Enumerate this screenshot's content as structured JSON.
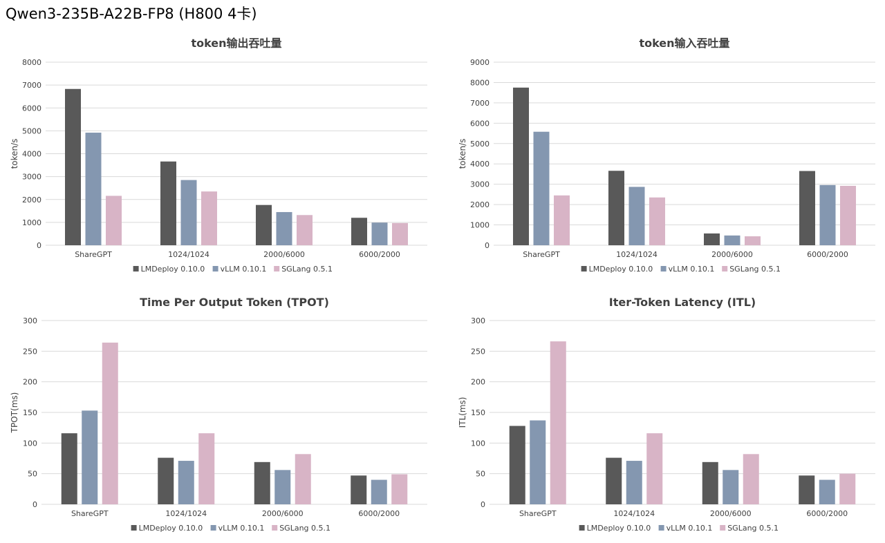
{
  "page_title": "Qwen3-235B-A22B-FP8 (H800 4卡)",
  "legend": [
    "LMDeploy 0.10.0",
    "vLLM 0.10.1",
    "SGLang 0.5.1"
  ],
  "colors": [
    "#595959",
    "#8497b0",
    "#d8b4c6"
  ],
  "chart_data": [
    {
      "type": "bar",
      "title": "token输出吞吐量",
      "ylabel": "token/s",
      "xlabel": "",
      "categories": [
        "ShareGPT",
        "1024/1024",
        "2000/6000",
        "6000/2000"
      ],
      "ylim": [
        0,
        8000
      ],
      "yticks": [
        0,
        1000,
        2000,
        3000,
        4000,
        5000,
        6000,
        7000,
        8000
      ],
      "legend_position": "bottom",
      "series": [
        {
          "name": "LMDeploy 0.10.0",
          "values": [
            6830,
            3660,
            1760,
            1200
          ]
        },
        {
          "name": "vLLM 0.10.1",
          "values": [
            4920,
            2850,
            1450,
            990
          ]
        },
        {
          "name": "SGLang 0.5.1",
          "values": [
            2160,
            2350,
            1320,
            970
          ]
        }
      ]
    },
    {
      "type": "bar",
      "title": "token输入吞吐量",
      "ylabel": "token/s",
      "xlabel": "",
      "categories": [
        "ShareGPT",
        "1024/1024",
        "2000/6000",
        "6000/2000"
      ],
      "ylim": [
        0,
        9000
      ],
      "yticks": [
        0,
        1000,
        2000,
        3000,
        4000,
        5000,
        6000,
        7000,
        8000,
        9000
      ],
      "legend_position": "bottom",
      "series": [
        {
          "name": "LMDeploy 0.10.0",
          "values": [
            7750,
            3660,
            580,
            3650
          ]
        },
        {
          "name": "vLLM 0.10.1",
          "values": [
            5580,
            2870,
            480,
            2960
          ]
        },
        {
          "name": "SGLang 0.5.1",
          "values": [
            2450,
            2350,
            440,
            2920
          ]
        }
      ]
    },
    {
      "type": "bar",
      "title": "Time Per Output Token (TPOT)",
      "ylabel": "TPOT(ms)",
      "xlabel": "",
      "categories": [
        "ShareGPT",
        "1024/1024",
        "2000/6000",
        "6000/2000"
      ],
      "ylim": [
        0,
        300
      ],
      "yticks": [
        0,
        50,
        100,
        150,
        200,
        250,
        300
      ],
      "legend_position": "bottom",
      "series": [
        {
          "name": "LMDeploy 0.10.0",
          "values": [
            116,
            76,
            69,
            47
          ]
        },
        {
          "name": "vLLM 0.10.1",
          "values": [
            153,
            71,
            56,
            40
          ]
        },
        {
          "name": "SGLang 0.5.1",
          "values": [
            264,
            116,
            82,
            49
          ]
        }
      ]
    },
    {
      "type": "bar",
      "title": "Iter-Token Latency (ITL)",
      "ylabel": "ITL(ms)",
      "xlabel": "",
      "categories": [
        "ShareGPT",
        "1024/1024",
        "2000/6000",
        "6000/2000"
      ],
      "ylim": [
        0,
        300
      ],
      "yticks": [
        0,
        50,
        100,
        150,
        200,
        250,
        300
      ],
      "legend_position": "bottom",
      "series": [
        {
          "name": "LMDeploy 0.10.0",
          "values": [
            128,
            76,
            69,
            47
          ]
        },
        {
          "name": "vLLM 0.10.1",
          "values": [
            137,
            71,
            56,
            40
          ]
        },
        {
          "name": "SGLang 0.5.1",
          "values": [
            266,
            116,
            82,
            50
          ]
        }
      ]
    }
  ]
}
